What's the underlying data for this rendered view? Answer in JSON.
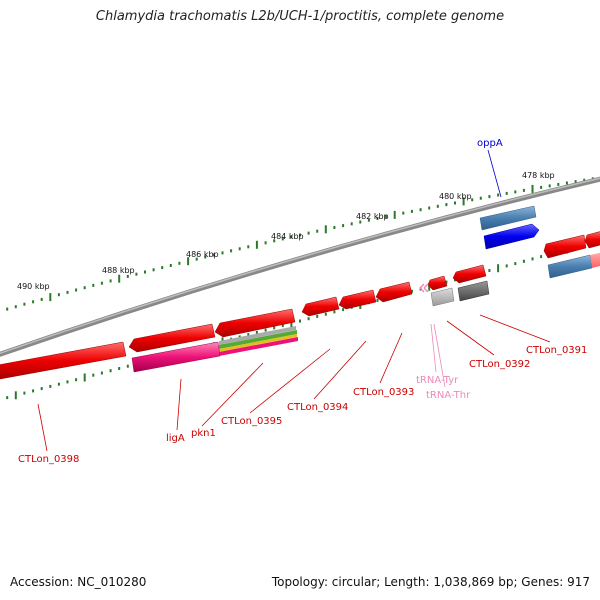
{
  "title": "Chlamydia trachomatis L2b/UCH-1/proctitis, complete genome",
  "accession_line": "Accession: NC_010280",
  "stats_line": "Topology: circular; Length: 1,038,869 bp; Genes: 917",
  "kbp_labels": [
    "490 kbp",
    "488 kbp",
    "486 kbp",
    "484 kbp",
    "482 kbp",
    "480 kbp",
    "478 kbp"
  ],
  "gene_labels": {
    "oppA": "oppA",
    "ctlon_0391": "CTLon_0391",
    "ctlon_0392": "CTLon_0392",
    "trna_tyr": "tRNA-Tyr",
    "trna_thr": "tRNA-Thr",
    "ctlon_0393": "CTLon_0393",
    "ctlon_0394": "CTLon_0394",
    "ctlon_0395": "CTLon_0395",
    "pkn1": "pkn1",
    "ligA": "ligA",
    "ctlon_0398": "CTLon_0398"
  },
  "colors": {
    "gene_red": "#ee0000",
    "gene_blue": "#0000ee",
    "steel_blue": "#4a7fb0",
    "magenta": "#ee1177",
    "backbone": "#888888",
    "tick_green": "#2a7a2a",
    "label_red": "#cc0000",
    "label_blue": "#0000cc",
    "label_pink": "#ee88bb"
  }
}
